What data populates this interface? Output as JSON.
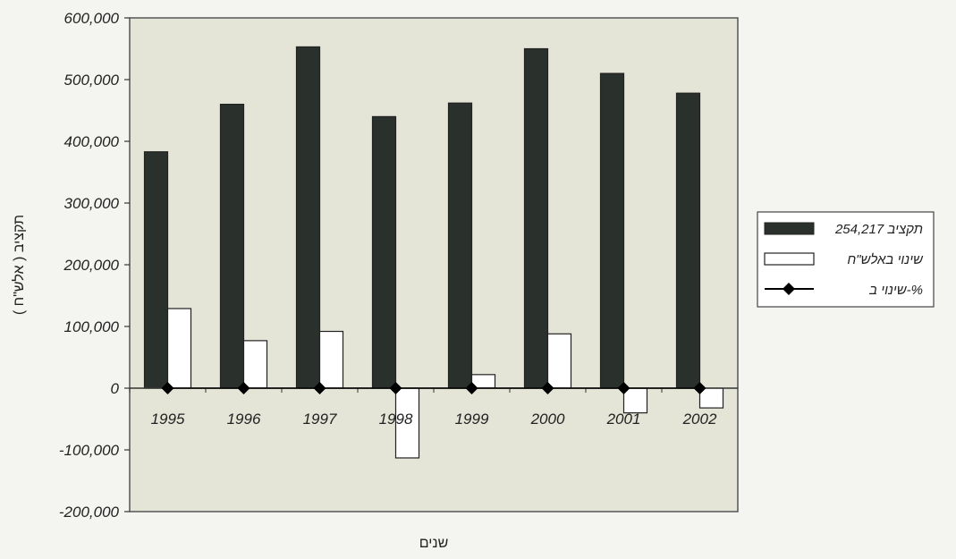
{
  "chart_data": {
    "type": "bar",
    "categories": [
      "1995",
      "1996",
      "1997",
      "1998",
      "1999",
      "2000",
      "2001",
      "2002"
    ],
    "series": [
      {
        "name": "תקציב 254,217",
        "type": "bar",
        "color": "#2a312c",
        "values": [
          383000,
          460000,
          553000,
          440000,
          462000,
          550000,
          510000,
          478000
        ]
      },
      {
        "name": "שינוי באלש\"ח",
        "type": "bar",
        "color": "#ffffff",
        "values": [
          129000,
          77000,
          92000,
          -113000,
          22000,
          88000,
          -40000,
          -32000
        ]
      },
      {
        "name": "שינוי ב-%",
        "type": "line",
        "color": "#000000",
        "values": [
          0,
          0,
          0,
          0,
          0,
          0,
          0,
          0
        ]
      }
    ],
    "y_ticks": [
      "600,000",
      "500,000",
      "400,000",
      "300,000",
      "200,000",
      "100,000",
      "0",
      "-100,000",
      "-200,000"
    ],
    "ylim": [
      -200000,
      600000
    ],
    "xlabel": "שנים",
    "ylabel": "תקציב ( אלש\"ח )",
    "title": "",
    "grid": false,
    "legend_position": "right",
    "plot_background": "#e4e4d7"
  }
}
